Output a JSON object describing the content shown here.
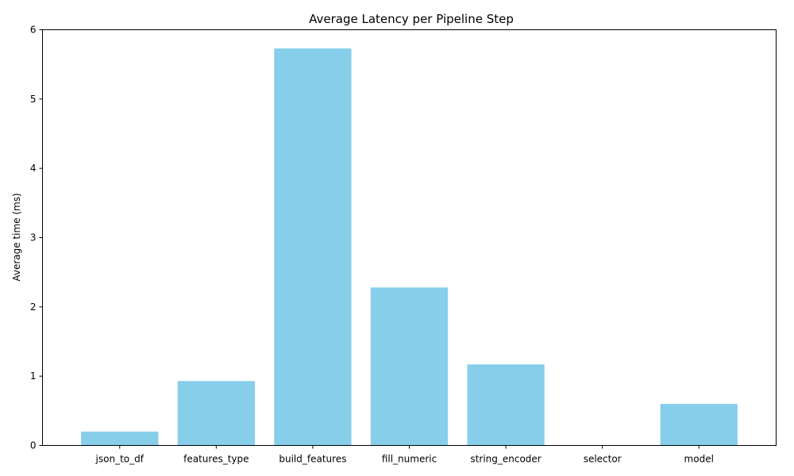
{
  "chart_data": {
    "type": "bar",
    "title": "Average Latency per Pipeline Step",
    "xlabel": "",
    "ylabel": "Average time (ms)",
    "categories": [
      "json_to_df",
      "features_type",
      "build_features",
      "fill_numeric",
      "string_encoder",
      "selector",
      "model"
    ],
    "values": [
      0.2,
      0.93,
      5.73,
      2.28,
      1.17,
      0.005,
      0.6
    ],
    "ylim": [
      0,
      6
    ],
    "yticks": [
      0,
      1,
      2,
      3,
      4,
      5,
      6
    ],
    "grid": false,
    "bar_color": "#87CEEB"
  }
}
